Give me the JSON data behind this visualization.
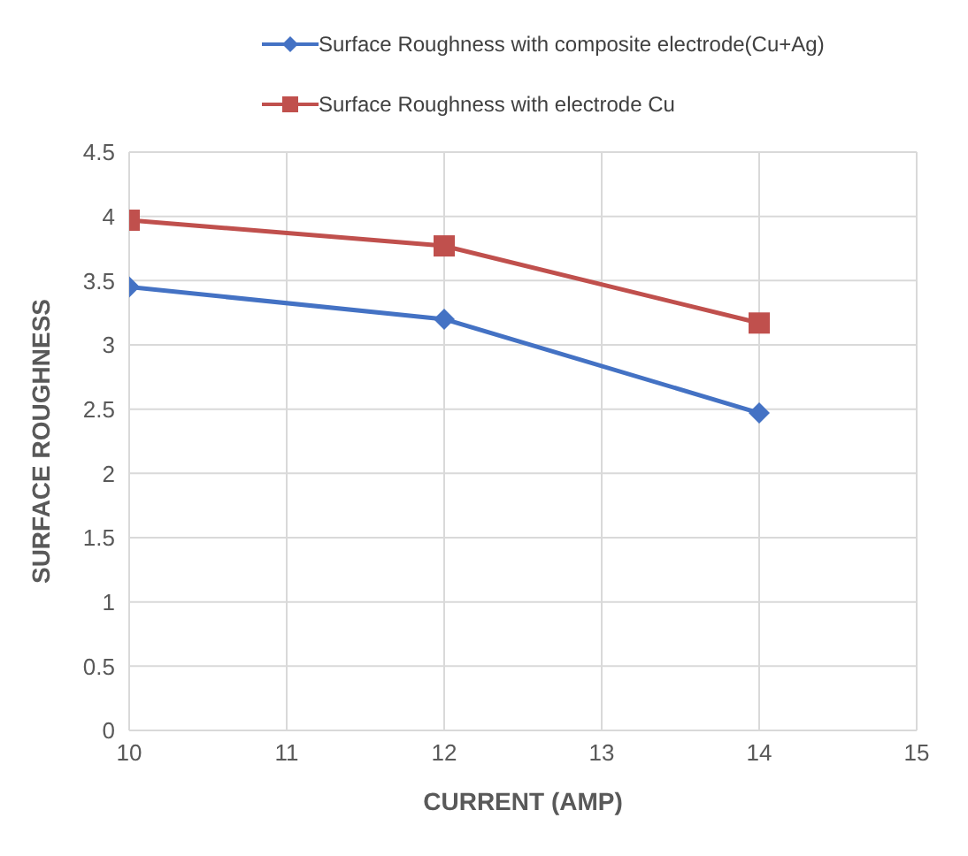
{
  "chart_data": {
    "type": "line",
    "xlabel": "CURRENT (AMP)",
    "ylabel": "SURFACE ROUGHNESS",
    "x": [
      10,
      12,
      14
    ],
    "xlim": [
      10,
      15
    ],
    "xticks": [
      10,
      11,
      12,
      13,
      14,
      15
    ],
    "ylim": [
      0,
      4.5
    ],
    "yticks": [
      0,
      0.5,
      1,
      1.5,
      2,
      2.5,
      3,
      3.5,
      4,
      4.5
    ],
    "grid": true,
    "legend": "top",
    "series": [
      {
        "name": "Surface Roughness with composite electrode(Cu+Ag)",
        "color": "#4472c4",
        "marker": "diamond",
        "values": [
          3.45,
          3.2,
          2.47
        ]
      },
      {
        "name": "Surface Roughness with electrode Cu",
        "color": "#c0504d",
        "marker": "square",
        "values": [
          3.97,
          3.77,
          3.17
        ]
      }
    ]
  }
}
